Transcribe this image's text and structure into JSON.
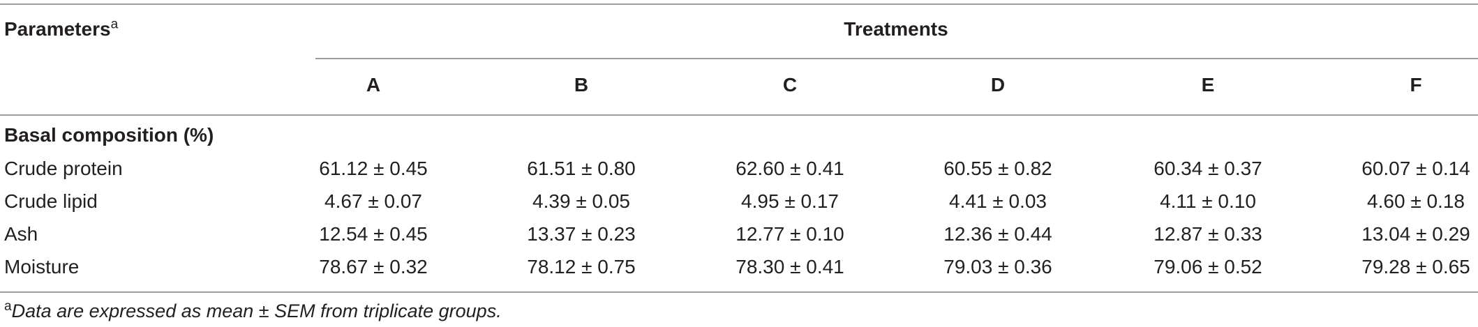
{
  "table": {
    "parameters_label": "Parameters",
    "parameters_sup": "a",
    "treatments_label": "Treatments",
    "columns": [
      "A",
      "B",
      "C",
      "D",
      "E",
      "F"
    ],
    "section_label": "Basal composition (%)",
    "rows": [
      {
        "label": "Crude protein",
        "values": [
          "61.12 ± 0.45",
          "61.51 ± 0.80",
          "62.60 ± 0.41",
          "60.55 ± 0.82",
          "60.34 ± 0.37",
          "60.07 ± 0.14"
        ]
      },
      {
        "label": "Crude lipid",
        "values": [
          "4.67 ± 0.07",
          "4.39 ± 0.05",
          "4.95 ± 0.17",
          "4.41 ± 0.03",
          "4.11 ± 0.10",
          "4.60 ± 0.18"
        ]
      },
      {
        "label": "Ash",
        "values": [
          "12.54 ± 0.45",
          "13.37 ± 0.23",
          "12.77 ± 0.10",
          "12.36 ± 0.44",
          "12.87 ± 0.33",
          "13.04 ± 0.29"
        ]
      },
      {
        "label": "Moisture",
        "values": [
          "78.67 ± 0.32",
          "78.12 ± 0.75",
          "78.30 ± 0.41",
          "79.03 ± 0.36",
          "79.06 ± 0.52",
          "79.28 ± 0.65"
        ]
      }
    ]
  },
  "footnote": {
    "marker": "a",
    "text": "Data are expressed as mean ± SEM from triplicate groups."
  }
}
